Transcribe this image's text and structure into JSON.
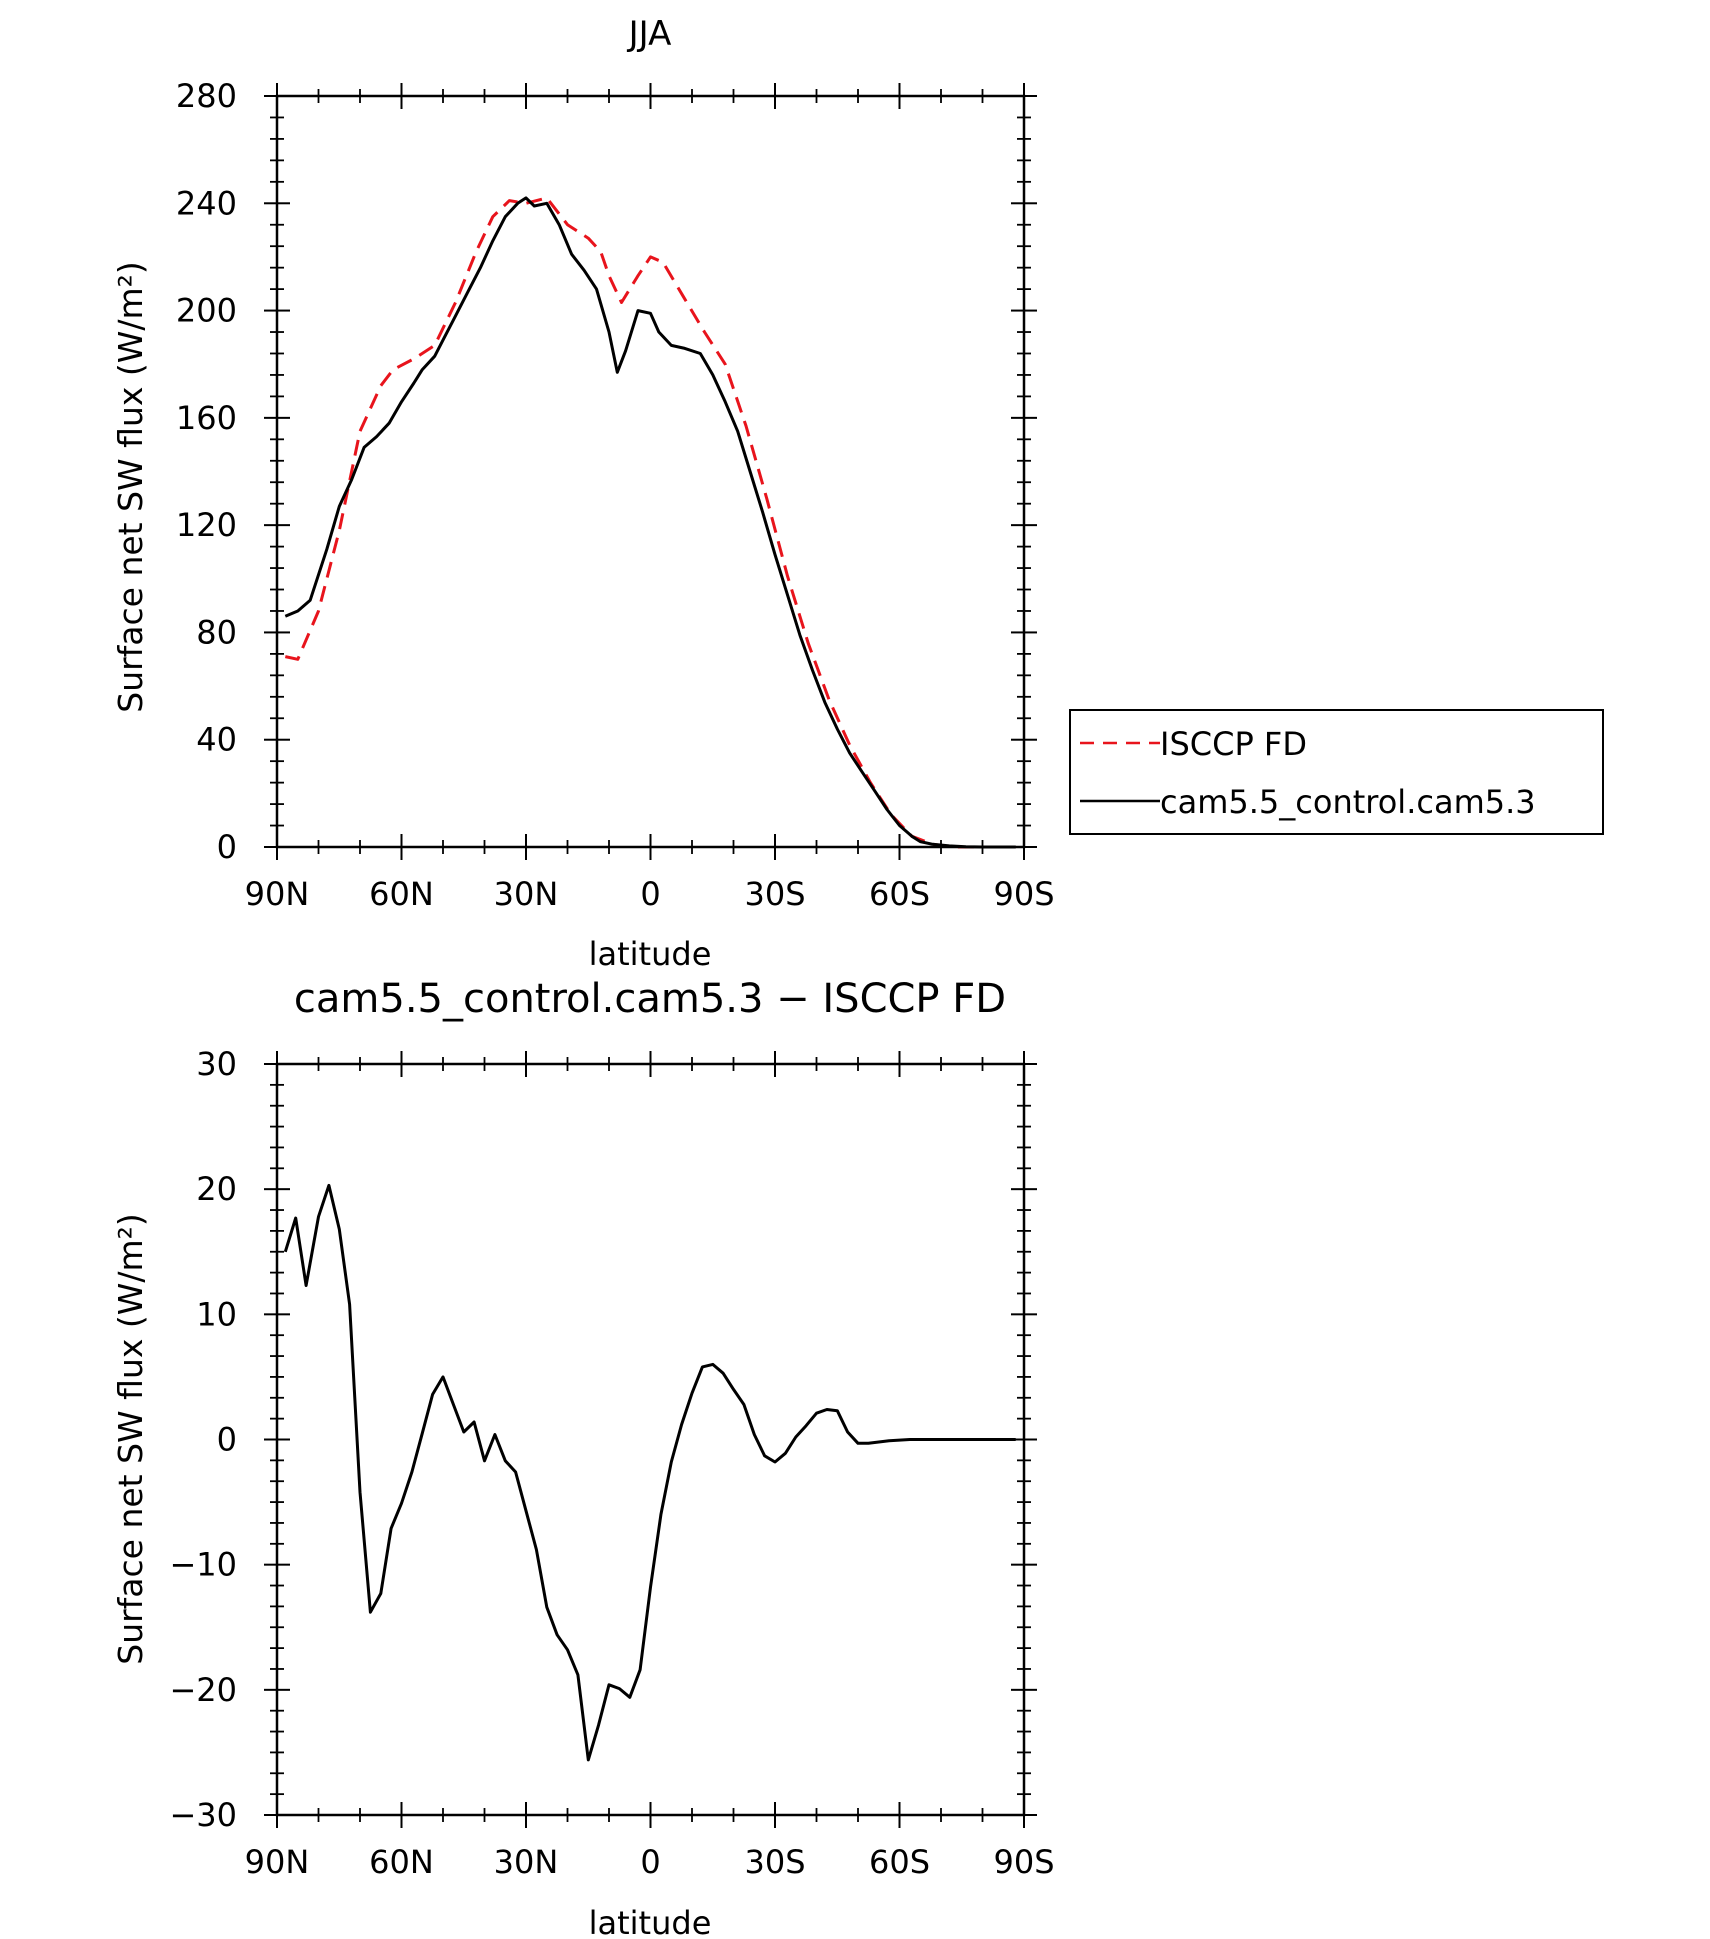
{
  "chart_data": [
    {
      "type": "line",
      "title": "JJA",
      "xlabel": "latitude",
      "ylabel": "Surface net SW flux (W/m²)",
      "xlim": [
        90,
        -90
      ],
      "ylim": [
        0,
        280
      ],
      "x_ticks": [
        {
          "value": 90,
          "label": "90N"
        },
        {
          "value": 60,
          "label": "60N"
        },
        {
          "value": 30,
          "label": "30N"
        },
        {
          "value": 0,
          "label": "0"
        },
        {
          "value": -30,
          "label": "30S"
        },
        {
          "value": -60,
          "label": "60S"
        },
        {
          "value": -90,
          "label": "90S"
        }
      ],
      "y_ticks": [
        0,
        40,
        80,
        120,
        160,
        200,
        240,
        280
      ],
      "legend_position": "right",
      "series": [
        {
          "name": "ISCCP FD",
          "color": "#e8141c",
          "dash": true,
          "x": [
            88,
            85,
            80,
            75,
            70,
            65,
            62,
            57,
            52,
            47,
            42,
            38,
            34,
            30,
            25,
            20,
            15,
            12,
            10,
            7,
            3,
            0,
            -3,
            -8,
            -13,
            -18,
            -23,
            -28,
            -33,
            -38,
            -43,
            -48,
            -53,
            -58,
            -63,
            -68,
            -73,
            -78,
            -83,
            -88
          ],
          "y": [
            71,
            70,
            88,
            118,
            155,
            172,
            178,
            182,
            187,
            203,
            222,
            235,
            241,
            240,
            242,
            232,
            227,
            222,
            213,
            203,
            213,
            220,
            218,
            205,
            192,
            180,
            157,
            130,
            101,
            76,
            55,
            38,
            24,
            12,
            4,
            1,
            0,
            0,
            0,
            0
          ]
        },
        {
          "name": "cam5.5_control.cam5.3",
          "color": "#000000",
          "dash": false,
          "x": [
            88,
            85,
            82,
            78,
            75,
            72,
            69,
            66,
            63,
            60,
            57,
            55,
            52,
            50,
            47,
            44,
            41,
            38,
            35,
            32,
            30,
            28,
            25,
            22,
            19,
            16,
            13,
            10,
            8,
            6,
            3,
            0,
            -2,
            -5,
            -8,
            -12,
            -15,
            -18,
            -21,
            -24,
            -27,
            -30,
            -33,
            -36,
            -39,
            -42,
            -45,
            -48,
            -51,
            -54,
            -57,
            -60,
            -63,
            -65,
            -68,
            -72,
            -76,
            -80,
            -84,
            -88
          ],
          "y": [
            86,
            88,
            92,
            111,
            127,
            137,
            149,
            153,
            158,
            166,
            173,
            178,
            183,
            189,
            198,
            207,
            216,
            226,
            235,
            240,
            242,
            239,
            240,
            232,
            221,
            215,
            208,
            192,
            177,
            185,
            200,
            199,
            192,
            187,
            186,
            184,
            176,
            166,
            155,
            140,
            125,
            109,
            94,
            79,
            66,
            54,
            44,
            35,
            28,
            21,
            14,
            8,
            4,
            2,
            1,
            0.4,
            0.1,
            0,
            0,
            0
          ]
        }
      ]
    },
    {
      "type": "line",
      "title": "cam5.5_control.cam5.3 − ISCCP FD",
      "xlabel": "latitude",
      "ylabel": "Surface net SW flux (W/m²)",
      "xlim": [
        90,
        -90
      ],
      "ylim": [
        -30,
        30
      ],
      "x_ticks": [
        {
          "value": 90,
          "label": "90N"
        },
        {
          "value": 60,
          "label": "60N"
        },
        {
          "value": 30,
          "label": "30N"
        },
        {
          "value": 0,
          "label": "0"
        },
        {
          "value": -30,
          "label": "30S"
        },
        {
          "value": -60,
          "label": "60S"
        },
        {
          "value": -90,
          "label": "90S"
        }
      ],
      "y_ticks": [
        -30,
        -20,
        -10,
        0,
        10,
        20,
        30
      ],
      "series": [
        {
          "color": "#000000",
          "dash": false,
          "x": [
            88,
            85.5,
            83,
            80,
            77.5,
            75,
            72.5,
            70,
            67.5,
            65,
            62.5,
            60,
            57.5,
            55,
            52.5,
            50,
            47.5,
            45,
            42.5,
            40,
            37.5,
            35,
            32.5,
            30,
            27.5,
            25,
            22.5,
            20,
            17.5,
            15,
            12.5,
            10,
            7.5,
            5,
            2.5,
            0,
            -2.5,
            -5,
            -7.5,
            -10,
            -12.5,
            -15,
            -17.5,
            -20,
            -22.5,
            -25,
            -27.5,
            -30,
            -32.5,
            -35,
            -37.5,
            -40,
            -42.5,
            -45,
            -47.5,
            -50,
            -52.5,
            -55,
            -57.5,
            -60,
            -62.5,
            -65,
            -67.5,
            -70,
            -72.5,
            -75,
            -80,
            -85,
            -88
          ],
          "y": [
            15,
            17.7,
            12.3,
            17.8,
            20.3,
            16.8,
            10.8,
            -4.2,
            -13.8,
            -12.3,
            -7.1,
            -5.1,
            -2.6,
            0.5,
            3.6,
            5.0,
            2.8,
            0.6,
            1.4,
            -1.7,
            0.4,
            -1.7,
            -2.6,
            -5.7,
            -8.8,
            -13.4,
            -15.6,
            -16.8,
            -18.8,
            -25.6,
            -22.8,
            -19.6,
            -19.9,
            -20.6,
            -18.4,
            -11.8,
            -6.0,
            -1.8,
            1.2,
            3.7,
            5.8,
            6.0,
            5.3,
            4.0,
            2.8,
            0.4,
            -1.3,
            -1.8,
            -1.1,
            0.2,
            1.1,
            2.1,
            2.4,
            2.3,
            0.6,
            -0.3,
            -0.3,
            -0.2,
            -0.1,
            -0.05,
            0,
            0,
            0,
            0,
            0,
            0,
            0,
            0,
            0
          ]
        }
      ]
    }
  ]
}
